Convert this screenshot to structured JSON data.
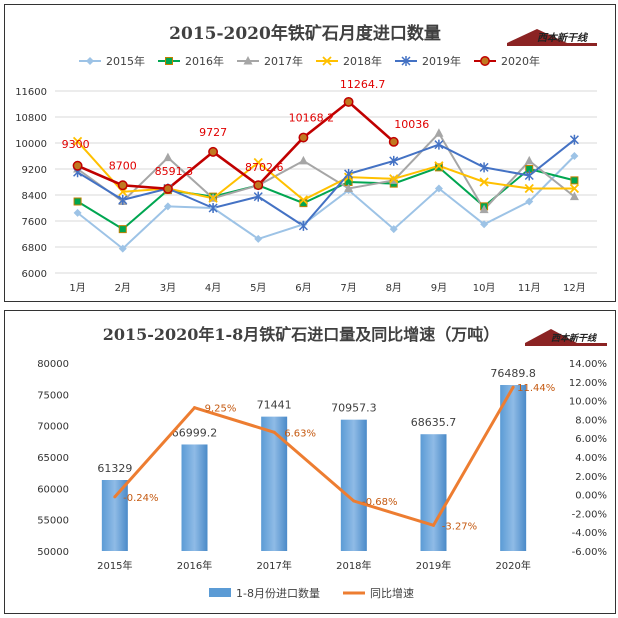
{
  "logo_text": "西本新干线",
  "chart_data": [
    {
      "type": "line",
      "title": "2015-2020年铁矿石月度进口数量",
      "categories": [
        "1月",
        "2月",
        "3月",
        "4月",
        "5月",
        "6月",
        "7月",
        "8月",
        "9月",
        "10月",
        "11月",
        "12月"
      ],
      "ylim": [
        6000,
        11600
      ],
      "yticks": [
        6000,
        6800,
        7600,
        8400,
        9200,
        10000,
        10800,
        11600
      ],
      "grid": true,
      "legend": "top",
      "series": [
        {
          "name": "2015年",
          "color": "#9dc3e6",
          "marker": "diamond",
          "values": [
            7850,
            6750,
            8050,
            8000,
            7050,
            7500,
            8550,
            7350,
            8600,
            7500,
            8200,
            9600
          ]
        },
        {
          "name": "2016年",
          "color": "#00a651",
          "marker": "square",
          "values": [
            8200,
            7350,
            8550,
            8350,
            8700,
            8150,
            8800,
            8750,
            9250,
            8050,
            9200,
            8850
          ]
        },
        {
          "name": "2017年",
          "color": "#a6a6a6",
          "marker": "triangle",
          "values": [
            9200,
            8200,
            9550,
            8300,
            8700,
            9450,
            8600,
            8850,
            10300,
            7950,
            9450,
            8350
          ]
        },
        {
          "name": "2018年",
          "color": "#ffc000",
          "marker": "x",
          "values": [
            10050,
            8500,
            8600,
            8300,
            9400,
            8250,
            8950,
            8900,
            9300,
            8800,
            8600,
            8600
          ]
        },
        {
          "name": "2019年",
          "color": "#4472c4",
          "marker": "star",
          "values": [
            9100,
            8250,
            8600,
            8000,
            8350,
            7450,
            9050,
            9450,
            9950,
            9250,
            9000,
            10100
          ]
        },
        {
          "name": "2020年",
          "color": "#c00000",
          "marker": "circle",
          "values": [
            9300,
            8700,
            8591.3,
            9727,
            8702.6,
            10168.2,
            11264.7,
            10036,
            null,
            null,
            null,
            null
          ]
        }
      ],
      "data_labels": [
        "9300",
        "8700",
        "8591.3",
        "9727",
        "8702.6",
        "10168.2",
        "11264.7",
        "10036"
      ]
    },
    {
      "type": "bar",
      "title": "2015-2020年1-8月铁矿石进口量及同比增速（万吨）",
      "categories": [
        "2015年",
        "2016年",
        "2017年",
        "2018年",
        "2019年",
        "2020年"
      ],
      "ylim": [
        50000,
        80000
      ],
      "yticks": [
        50000,
        55000,
        60000,
        65000,
        70000,
        75000,
        80000
      ],
      "y2lim": [
        -6,
        14
      ],
      "y2ticks": [
        "-6.00%",
        "-4.00%",
        "-2.00%",
        "0.00%",
        "2.00%",
        "4.00%",
        "6.00%",
        "8.00%",
        "10.00%",
        "12.00%",
        "14.00%"
      ],
      "legend": "bottom",
      "series": [
        {
          "name": "1-8月份进口数量",
          "type": "bar",
          "color": "#5b9bd5",
          "values": [
            61329,
            66999.2,
            71441,
            70957.3,
            68635.7,
            76489.8
          ],
          "labels": [
            "61329",
            "66999.2",
            "71441",
            "70957.3",
            "68635.7",
            "76489.8"
          ]
        },
        {
          "name": "同比增速",
          "type": "line",
          "axis": "right",
          "color": "#ed7d31",
          "values": [
            -0.24,
            9.25,
            6.63,
            -0.68,
            -3.27,
            11.44
          ],
          "labels": [
            "-0.24%",
            "9.25%",
            "6.63%",
            "-0.68%",
            "-3.27%",
            "11.44%"
          ]
        }
      ]
    }
  ]
}
